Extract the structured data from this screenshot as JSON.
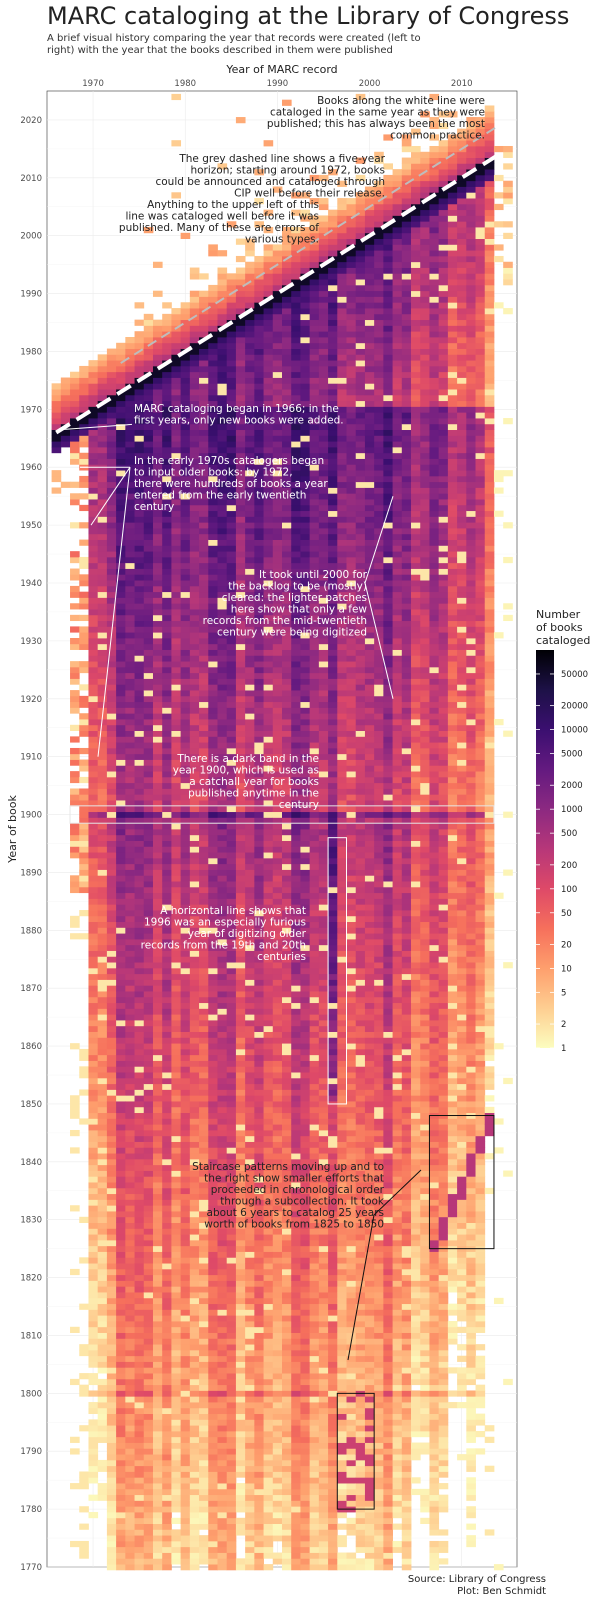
{
  "title": "MARC cataloging at the Library of Congress",
  "subtitle": "A brief visual history comparing the year that records were created (left to right) with the year that the books described in them were published",
  "chart_data": {
    "type": "heatmap",
    "xlabel": "Year of MARC record",
    "ylabel": "Year of book",
    "xlim": [
      1965,
      2016
    ],
    "ylim": [
      1770,
      2025
    ],
    "x_ticks": [
      1970,
      1980,
      1990,
      2000,
      2010
    ],
    "y_ticks": [
      1770,
      1780,
      1790,
      1800,
      1810,
      1820,
      1830,
      1840,
      1850,
      1860,
      1870,
      1880,
      1890,
      1900,
      1910,
      1920,
      1930,
      1940,
      1950,
      1960,
      1970,
      1980,
      1990,
      2000,
      2010,
      2020
    ],
    "grid": true,
    "color_scale": "log",
    "palette": [
      "#fcfdbf",
      "#fece91",
      "#fe9f6d",
      "#f6705c",
      "#de4968",
      "#b73779",
      "#8c2981",
      "#641a80",
      "#3b0f70",
      "#1d1147",
      "#000004"
    ],
    "legend": {
      "title": "Number of books cataloged",
      "position": "right",
      "values": [
        1,
        2,
        5,
        10,
        20,
        50,
        100,
        200,
        500,
        1000,
        2000,
        5000,
        10000,
        20000,
        50000
      ]
    },
    "annotations": [
      {
        "id": "same-year",
        "text": "Books along the white line were cataloged in the same year as they were published; this has always been the most common practice.",
        "lines": [
          "Books along the white line were",
          "cataloged in the same year as they were",
          "published; this has always been the most",
          "common practice."
        ],
        "color": "#222222"
      },
      {
        "id": "five-year",
        "text": "The grey dashed line shows a five-year horizon; starting around 1972, books could be announced and cataloged through CIP well before their release.",
        "lines": [
          "The grey dashed line shows a five-year",
          "horizon; starting around 1972, books",
          "could be announced and cataloged through",
          "CIP well before their release."
        ],
        "color": "#222222"
      },
      {
        "id": "upper-left",
        "text": "Anything to the upper left of this line was cataloged well before it was published. Many of these are errors of various types.",
        "lines": [
          "Anything to the upper left of this",
          "line was cataloged well before it was",
          "published. Many of these are errors of",
          "various types."
        ],
        "color": "#222222"
      },
      {
        "id": "began-1966",
        "text": "MARC cataloging began in 1966; in the first years, only new books were added.",
        "lines": [
          "MARC cataloging began in 1966; in the",
          "first years, only new books were added."
        ],
        "color": "#ffffff"
      },
      {
        "id": "early-1970s",
        "text": "In the early 1970s catalogers began to input older books: by 1972, there were hundreds of books a year entered from the early twentieth century",
        "lines": [
          "In the early 1970s catalogers began",
          "to input older books: by 1972,",
          "there were hundreds of books a year",
          "entered from the early twentieth",
          "century"
        ],
        "color": "#ffffff"
      },
      {
        "id": "backlog-2000",
        "text": "It took until 2000 for the backlog to be (mostly) cleared: the lighter patches here show that only a few records from the mid-twentieth century were being digitized",
        "lines": [
          "It took until 2000 for",
          "the backlog to be (mostly)",
          "cleared: the lighter patches",
          "here show that only a few",
          "records from the mid-twentieth",
          "century were being digitized"
        ],
        "color": "#ffffff"
      },
      {
        "id": "band-1900",
        "text": "There is a dark band in the year 1900, which is used as a catchall year for books published anytime in the century",
        "lines": [
          "There is a dark band in the",
          "year 1900, which is used as",
          "a catchall year for books",
          "published anytime in the",
          "century"
        ],
        "color": "#ffffff"
      },
      {
        "id": "year-1996",
        "text": "A horizontal line shows that 1996 was an especially furious year of digitizing older records from the 19th and 20th centuries",
        "lines": [
          "A horizontal line shows that",
          "1996 was an especially furious",
          "year of digitizing older",
          "records from the 19th and 20th",
          "centuries"
        ],
        "color": "#ffffff"
      },
      {
        "id": "staircase",
        "text": "Staircase patterns moving up and to the right show smaller efforts that proceeded in chronological order through a subcollection. It took about 6 years to catalog 25 years worth of books from 1825 to 1850",
        "lines": [
          "Staircase patterns moving up and to",
          "the right show smaller efforts that",
          "proceeded in chronological order",
          "through a subcollection. It took",
          "about 6 years to catalog 25 years",
          "worth of books from 1825 to 1850"
        ],
        "color": "#222222"
      }
    ],
    "source": "Source: Library of Congress",
    "credit": "Plot: Ben Schmidt"
  }
}
